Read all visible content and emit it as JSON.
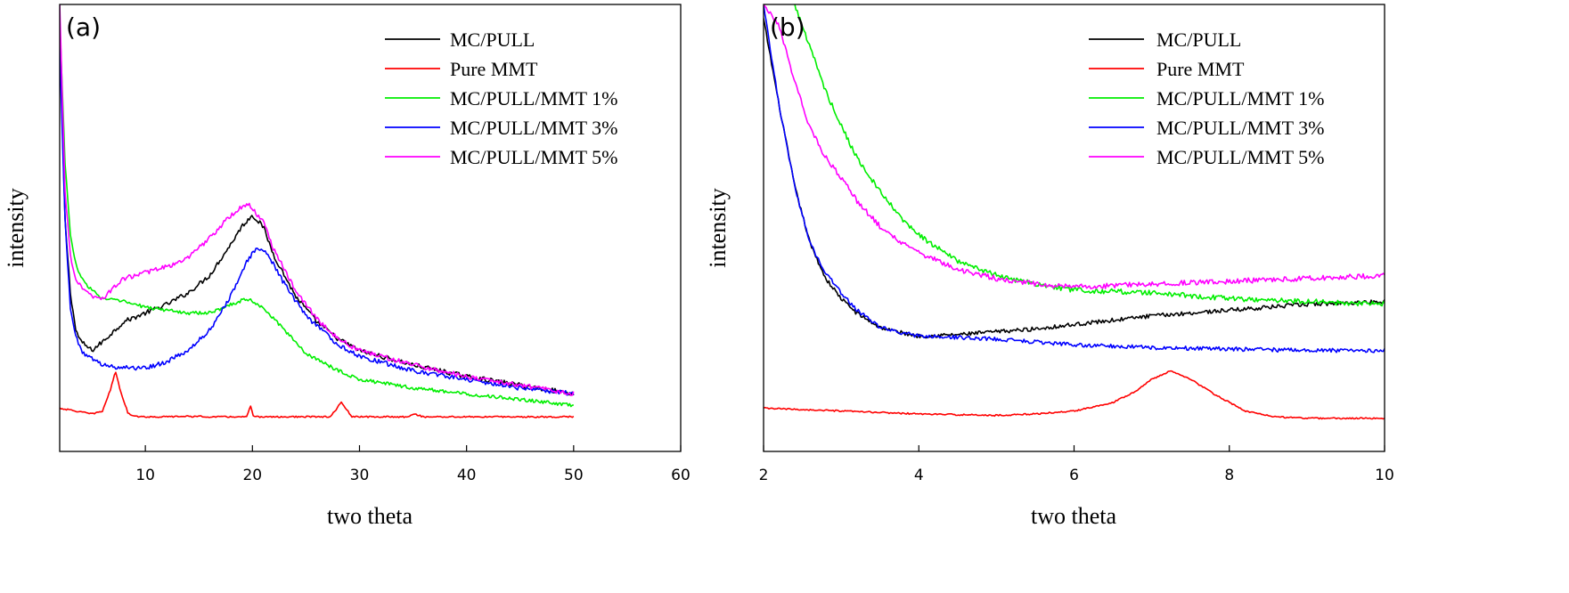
{
  "chart_data": [
    {
      "type": "line",
      "panel_label": "(a)",
      "xlabel": "two theta",
      "ylabel": "intensity",
      "xlim": [
        2,
        60
      ],
      "ylim": [
        -20,
        135
      ],
      "xticks": [
        10,
        20,
        30,
        40,
        50,
        60
      ],
      "yticks_shown": false,
      "legend_position": "top-right",
      "series": [
        {
          "name": "MC/PULL",
          "color": "#000000",
          "noise": 0.8,
          "x": [
            2,
            2.5,
            3,
            3.5,
            4,
            5,
            6,
            8,
            10,
            12,
            14,
            16,
            18,
            19,
            20,
            21,
            22,
            24,
            26,
            28,
            30,
            32,
            35,
            40,
            45,
            50
          ],
          "y": [
            125,
            60,
            35,
            22,
            18,
            15,
            18,
            25,
            28,
            31,
            35,
            41,
            52,
            58,
            62,
            58,
            48,
            34,
            25,
            19,
            15,
            13,
            10,
            6,
            3,
            0
          ]
        },
        {
          "name": "Pure MMT",
          "color": "#ff0000",
          "noise": 0.25,
          "x": [
            2,
            5,
            6,
            6.8,
            7.2,
            7.6,
            8.4,
            9.5,
            12,
            14,
            16,
            19.5,
            19.8,
            20.1,
            23,
            27.3,
            28.3,
            29.3,
            32,
            34.5,
            35,
            36,
            40,
            50
          ],
          "y": [
            -5,
            -7,
            -6,
            2,
            8,
            2,
            -7,
            -8,
            -8,
            -7.8,
            -8,
            -8,
            -4,
            -8,
            -8,
            -8,
            -3,
            -8,
            -8,
            -8,
            -7,
            -8,
            -8,
            -8
          ]
        },
        {
          "name": "MC/PULL/MMT 1%",
          "color": "#00ee00",
          "noise": 0.6,
          "x": [
            2,
            2.5,
            3,
            3.5,
            4,
            5,
            6,
            8,
            10,
            12,
            14,
            16,
            18,
            19.5,
            21,
            23,
            25,
            28,
            30,
            35,
            40,
            45,
            50
          ],
          "y": [
            130,
            80,
            55,
            45,
            40,
            36,
            33,
            32,
            30,
            29,
            28,
            28,
            31,
            33,
            30,
            22,
            14,
            8,
            5,
            2,
            0,
            -2,
            -4
          ]
        },
        {
          "name": "MC/PULL/MMT 3%",
          "color": "#0000ff",
          "noise": 0.8,
          "x": [
            2,
            2.5,
            3,
            3.5,
            4,
            5,
            6,
            8,
            10,
            12,
            14,
            16,
            18,
            19.5,
            20.5,
            21.5,
            23,
            25,
            28,
            30,
            35,
            40,
            45,
            50
          ],
          "y": [
            120,
            60,
            30,
            20,
            15,
            12,
            10,
            9,
            9,
            11,
            15,
            22,
            34,
            46,
            51,
            48,
            38,
            27,
            17,
            13,
            8,
            5,
            2,
            0
          ]
        },
        {
          "name": "MC/PULL/MMT 5%",
          "color": "#ff00ff",
          "noise": 0.8,
          "x": [
            2,
            2.5,
            3,
            3.5,
            4,
            5,
            6,
            8,
            10,
            12,
            14,
            16,
            18,
            19.5,
            21,
            22,
            24,
            26,
            28,
            30,
            35,
            40,
            45,
            50
          ],
          "y": [
            135,
            70,
            48,
            40,
            37,
            34,
            33,
            40,
            42,
            44,
            47,
            54,
            62,
            66,
            60,
            50,
            36,
            26,
            19,
            15,
            10,
            6,
            3,
            0
          ]
        }
      ]
    },
    {
      "type": "line",
      "panel_label": "(b)",
      "xlabel": "two theta",
      "ylabel": "intensity",
      "xlim": [
        2,
        10
      ],
      "ylim": [
        -20,
        135
      ],
      "xticks": [
        2,
        4,
        6,
        8,
        10
      ],
      "yticks_shown": false,
      "legend_position": "top-right",
      "series": [
        {
          "name": "MC/PULL",
          "color": "#000000",
          "noise": 0.7,
          "x": [
            2,
            2.2,
            2.4,
            2.6,
            2.8,
            3,
            3.2,
            3.5,
            3.8,
            4,
            4.5,
            5,
            5.5,
            6,
            7,
            8,
            9,
            10
          ],
          "y": [
            130,
            100,
            72,
            52,
            40,
            33,
            28,
            23,
            21,
            20,
            20.5,
            21.5,
            22.5,
            24,
            27,
            29,
            31,
            32
          ]
        },
        {
          "name": "Pure MMT",
          "color": "#ff0000",
          "noise": 0.25,
          "x": [
            2,
            3,
            4,
            5,
            5.5,
            6,
            6.5,
            6.8,
            7,
            7.25,
            7.5,
            7.8,
            8.2,
            8.6,
            9,
            10
          ],
          "y": [
            -5,
            -6,
            -7,
            -7.5,
            -7,
            -6,
            -3,
            1,
            5,
            8,
            5,
            0,
            -6,
            -8,
            -8.5,
            -8.5
          ]
        },
        {
          "name": "MC/PULL/MMT 1%",
          "color": "#00ee00",
          "noise": 0.9,
          "x": [
            2.4,
            2.6,
            2.8,
            3,
            3.2,
            3.5,
            3.8,
            4,
            4.5,
            5,
            5.5,
            6,
            7,
            8,
            9,
            10
          ],
          "y": [
            135,
            120,
            105,
            93,
            82,
            70,
            60,
            55,
            46,
            41,
            38,
            36,
            35,
            33,
            32,
            31
          ]
        },
        {
          "name": "MC/PULL/MMT 3%",
          "color": "#0000ff",
          "noise": 0.7,
          "x": [
            2,
            2.2,
            2.4,
            2.6,
            2.8,
            3,
            3.2,
            3.5,
            3.8,
            4,
            4.5,
            5,
            6,
            7,
            8,
            9,
            10
          ],
          "y": [
            135,
            100,
            72,
            52,
            42,
            35,
            29,
            23,
            21,
            20,
            19.5,
            19,
            17,
            16,
            15.5,
            15,
            15
          ]
        },
        {
          "name": "MC/PULL/MMT 5%",
          "color": "#ff00ff",
          "noise": 0.9,
          "x": [
            2,
            2.2,
            2.4,
            2.6,
            2.8,
            3,
            3.2,
            3.5,
            3.8,
            4,
            4.5,
            5,
            5.5,
            6,
            7,
            8,
            9,
            10
          ],
          "y": [
            135,
            128,
            108,
            92,
            82,
            75,
            67,
            58,
            52,
            49,
            43,
            40,
            38,
            37,
            38,
            39,
            40,
            41
          ]
        }
      ]
    }
  ]
}
